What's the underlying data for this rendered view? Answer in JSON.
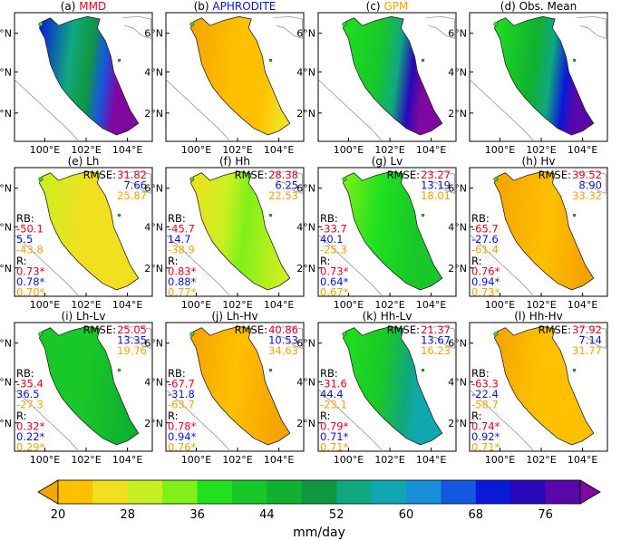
{
  "colors": {
    "red": "#e8001c",
    "blue": "#0a14c8",
    "orange": "#f5a300",
    "black": "#000000",
    "colorbar": [
      "#f5a300",
      "#ffc000",
      "#f0e020",
      "#c8f020",
      "#80f018",
      "#20e020",
      "#18c828",
      "#10b030",
      "#109840",
      "#10a880",
      "#10a8b0",
      "#1890d8",
      "#1458e0",
      "#0a18d8",
      "#2808b8",
      "#5808a8",
      "#8008a0"
    ]
  },
  "axes": {
    "y_ticks": [
      "2°N",
      "4°N",
      "6°N"
    ],
    "x_ticks": [
      "100°E",
      "102°E",
      "104°E"
    ]
  },
  "panels": [
    {
      "prefix": "(a) ",
      "name": "MMD",
      "name_color": "red",
      "kind": "obs"
    },
    {
      "prefix": "(b) ",
      "name": "APHRODITE",
      "name_color": "blue",
      "kind": "obs"
    },
    {
      "prefix": "(c) ",
      "name": "GPM",
      "name_color": "orange",
      "kind": "obs"
    },
    {
      "prefix": "(d) Obs. Mean",
      "name": "",
      "name_color": "black",
      "kind": "obs"
    },
    {
      "prefix": "(e) Lh",
      "name": "",
      "name_color": "black",
      "kind": "model",
      "rmse": [
        "31.82",
        "7.66",
        "25.87"
      ],
      "rb": [
        "-50.1",
        "5.5",
        "-43.8"
      ],
      "r": [
        "0.73*",
        "0.78*",
        "0.70*"
      ]
    },
    {
      "prefix": "(f) Hh",
      "name": "",
      "name_color": "black",
      "kind": "model",
      "rmse": [
        "28.38",
        "6.25",
        "22.53"
      ],
      "rb": [
        "-45.7",
        "14.7",
        "-38.9"
      ],
      "r": [
        "0.83*",
        "0.88*",
        "0.77*"
      ]
    },
    {
      "prefix": "(g) Lv",
      "name": "",
      "name_color": "black",
      "kind": "model",
      "rmse": [
        "23.27",
        "13.19",
        "18.01"
      ],
      "rb": [
        "-33.7",
        "40.1",
        "-25.3"
      ],
      "r": [
        "0.73*",
        "0.64*",
        "0.67*"
      ]
    },
    {
      "prefix": "(h) Hv",
      "name": "",
      "name_color": "black",
      "kind": "model",
      "rmse": [
        "39.52",
        "8.90",
        "33.32"
      ],
      "rb": [
        "-65.7",
        "-27.6",
        "-61.4"
      ],
      "r": [
        "0.76*",
        "0.94*",
        "0.73*"
      ]
    },
    {
      "prefix": "(i) Lh-Lv",
      "name": "",
      "name_color": "black",
      "kind": "model",
      "rmse": [
        "25.05",
        "13.35",
        "19.76"
      ],
      "rb": [
        "-35.4",
        "36.5",
        "-27.3"
      ],
      "r": [
        "0.32*",
        "0.22*",
        "0.29*"
      ]
    },
    {
      "prefix": "(j) Lh-Hv",
      "name": "",
      "name_color": "black",
      "kind": "model",
      "rmse": [
        "40.86",
        "10.53",
        "34.63"
      ],
      "rb": [
        "-67.7",
        "-31.8",
        "-63.7"
      ],
      "r": [
        "0.78*",
        "0.94*",
        "0.76*"
      ]
    },
    {
      "prefix": "(k) Hh-Lv",
      "name": "",
      "name_color": "black",
      "kind": "model",
      "rmse": [
        "21.37",
        "13.67",
        "16.23"
      ],
      "rb": [
        "-31.6",
        "44.4",
        "-23.1"
      ],
      "r": [
        "0.79*",
        "0.71*",
        "0.71*"
      ]
    },
    {
      "prefix": "(l) Hh-Hv",
      "name": "",
      "name_color": "black",
      "kind": "model",
      "rmse": [
        "37.92",
        "7.14",
        "31.77"
      ],
      "rb": [
        "-63.3",
        "-22.4",
        "-58.7"
      ],
      "r": [
        "0.74*",
        "0.92*",
        "0.71*"
      ]
    }
  ],
  "labels": {
    "rmse": "RMSE:",
    "rb": "RB:",
    "r": "R:"
  },
  "colorbar": {
    "tick_labels": [
      "20",
      "28",
      "36",
      "44",
      "52",
      "60",
      "68",
      "76"
    ],
    "unit": "mm/day"
  }
}
